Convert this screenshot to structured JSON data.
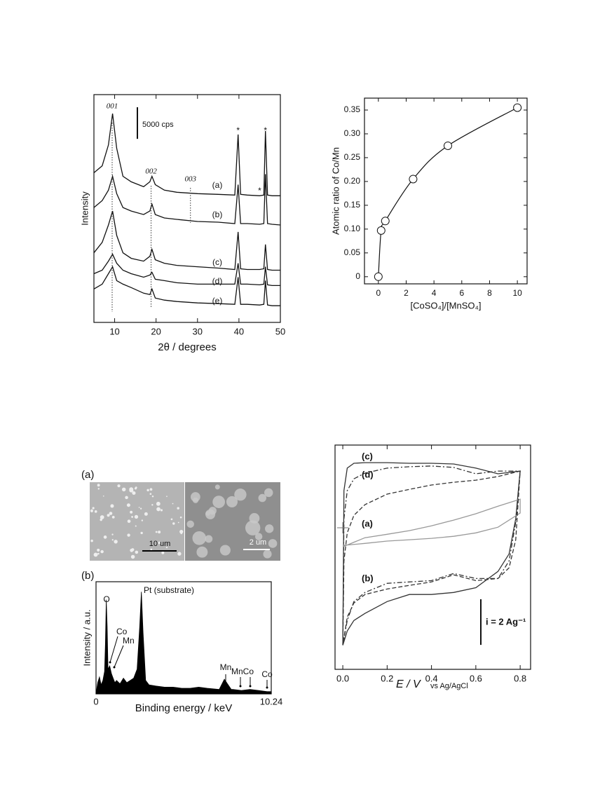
{
  "chart_data": [
    {
      "type": "line",
      "x_label": "2θ / degrees",
      "y_label": "Intensity",
      "xlim": [
        5,
        50
      ],
      "xticks": [
        10,
        20,
        30,
        40,
        50
      ],
      "ylim": [
        0,
        36000
      ],
      "x": [
        5,
        7,
        8.5,
        9.5,
        10.5,
        12,
        14,
        17,
        18.5,
        19,
        19.8,
        22,
        25,
        30,
        35,
        39,
        39.8,
        40.4,
        42,
        45,
        46,
        46.4,
        46.9,
        48,
        50
      ],
      "series": [
        {
          "name": "(a)",
          "color": "#111111",
          "values": [
            23650,
            24750,
            28050,
            33000,
            27500,
            23100,
            22220,
            21450,
            22220,
            23100,
            21780,
            20900,
            20570,
            20350,
            20240,
            20130,
            29700,
            20240,
            20130,
            20020,
            20130,
            30250,
            20130,
            20020,
            20020
          ]
        },
        {
          "name": "(b)",
          "color": "#111111",
          "values": [
            18150,
            19250,
            20900,
            23100,
            20350,
            18150,
            17600,
            17050,
            17600,
            18700,
            17050,
            16500,
            16280,
            15950,
            15840,
            15620,
            21780,
            15620,
            15620,
            15510,
            15620,
            23430,
            15620,
            15510,
            15400
          ]
        },
        {
          "name": "(c)",
          "color": "#111111",
          "values": [
            11000,
            12650,
            15400,
            17600,
            13750,
            11000,
            10120,
            9680,
            10450,
            11550,
            9900,
            9350,
            9020,
            8800,
            8580,
            8360,
            14300,
            8470,
            8360,
            8360,
            8470,
            12320,
            8360,
            8250,
            8250
          ]
        },
        {
          "name": "(d)",
          "color": "#111111",
          "values": [
            7700,
            8250,
            9680,
            10780,
            9350,
            8250,
            7700,
            7150,
            7480,
            7920,
            6820,
            6600,
            6270,
            6050,
            6050,
            6050,
            9350,
            6050,
            6050,
            5940,
            6050,
            8800,
            5940,
            5830,
            5830
          ]
        },
        {
          "name": "(e)",
          "color": "#111111",
          "values": [
            5280,
            6050,
            7700,
            8800,
            6600,
            6050,
            5500,
            4620,
            4400,
            5280,
            3850,
            3520,
            3300,
            3080,
            2970,
            2860,
            7150,
            2860,
            2860,
            2750,
            2860,
            6600,
            2750,
            2640,
            2640
          ]
        }
      ],
      "reflections": [
        {
          "value": 9.4,
          "label": "001"
        },
        {
          "value": 18.8,
          "label": "002"
        },
        {
          "value": 28.3,
          "label": "003"
        }
      ],
      "impurity_marks": [
        {
          "value": 39.8,
          "label": "*"
        },
        {
          "value": 46.4,
          "label": "*"
        },
        {
          "value": 45,
          "label": "*"
        }
      ],
      "scale_bar": {
        "value": 5000,
        "label": "5000 cps"
      }
    },
    {
      "type": "scatter",
      "line": true,
      "marker": "open-circle",
      "x_label": "[CoSO₄]/[MnSO₄]",
      "y_label": "Atomic ratio of Co/Mn",
      "xlim": [
        -1,
        10.7
      ],
      "xticks": [
        0,
        2,
        4,
        6,
        8,
        10
      ],
      "ylim": [
        -0.015,
        0.375
      ],
      "yticks": [
        0,
        0.05,
        {
          "value": 0.1,
          "label": "0.10"
        },
        0.15,
        {
          "value": 0.2,
          "label": "0.20"
        },
        0.25,
        {
          "value": 0.3,
          "label": "0.30"
        },
        0.35
      ],
      "x": [
        0,
        0.2,
        0.5,
        2.5,
        5,
        10
      ],
      "values": [
        0,
        0.097,
        0.117,
        0.205,
        0.275,
        0.355
      ],
      "color": "#111111"
    },
    {
      "type": "area",
      "panel_labels": [
        "(a)",
        "(b)"
      ],
      "scale_bars": [
        "10 um",
        "2 um"
      ],
      "x_label": "Binding energy / keV",
      "y_label": "Intensity / a.u.",
      "xlim": [
        0,
        10.24
      ],
      "xticks": [
        0,
        10.24
      ],
      "ylim": [
        0,
        100
      ],
      "x": [
        0,
        0.1,
        0.2,
        0.3,
        0.4,
        0.5,
        0.55,
        0.6,
        0.65,
        0.7,
        0.8,
        0.9,
        1.0,
        1.1,
        1.2,
        1.4,
        1.6,
        1.8,
        2.0,
        2.2,
        2.4,
        2.55,
        2.65,
        2.75,
        2.9,
        3.1,
        3.5,
        4,
        4.5,
        5,
        5.5,
        6,
        6.5,
        7.2,
        7.5,
        7.9,
        8,
        8.5,
        9,
        9.5,
        10,
        10.24
      ],
      "values": [
        0,
        10,
        15,
        8,
        12,
        20,
        45,
        84,
        60,
        22,
        25,
        18,
        14,
        10,
        12,
        9,
        14,
        10,
        12,
        14,
        22,
        60,
        91,
        55,
        12,
        8,
        7,
        6,
        6,
        5,
        5,
        6,
        5,
        4,
        13,
        4,
        4,
        3,
        4,
        3,
        2,
        2
      ],
      "color": "#000000",
      "peak_labels": [
        "O",
        "Co",
        "Mn",
        "Pt (substrate)",
        "Mn",
        "MnCo",
        "Co"
      ]
    },
    {
      "type": "line",
      "x_label": "E / V",
      "x_label_sub": "vs Ag/AgCl",
      "xlim": [
        -0.035,
        0.847
      ],
      "xticks": [
        {
          "value": 0,
          "label": "0.0"
        },
        0.2,
        0.4,
        0.6,
        0.8
      ],
      "ylim": [
        -6.2,
        3.63
      ],
      "series": [
        {
          "name": "(c)",
          "color": "#333333",
          "dash": "solid",
          "x": [
            0,
            0.005,
            0.02,
            0.05,
            0.1,
            0.2,
            0.3,
            0.4,
            0.5,
            0.6,
            0.7,
            0.8,
            0.78,
            0.75,
            0.7,
            0.6,
            0.5,
            0.4,
            0.3,
            0.2,
            0.1,
            0.05,
            0.02,
            0
          ],
          "values": [
            -5.14,
            1.63,
            2.62,
            2.83,
            2.86,
            2.86,
            2.83,
            2.83,
            2.8,
            2.62,
            2.37,
            2.49,
            0.4,
            -1.14,
            -1.91,
            -2.62,
            -2.83,
            -2.92,
            -2.92,
            -3.23,
            -3.75,
            -4.06,
            -4.52,
            -5.14
          ]
        },
        {
          "name": "(d)",
          "color": "#333333",
          "dash": "dashdot",
          "x": [
            0,
            0.005,
            0.02,
            0.05,
            0.1,
            0.2,
            0.3,
            0.4,
            0.5,
            0.6,
            0.7,
            0.8,
            0.78,
            0.75,
            0.7,
            0.6,
            0.5,
            0.4,
            0.3,
            0.2,
            0.1,
            0.05,
            0.02,
            0
          ],
          "values": [
            -5.14,
            0.4,
            1.63,
            2.15,
            2.4,
            2.62,
            2.68,
            2.71,
            2.65,
            2.37,
            2.49,
            2.49,
            0.25,
            -1.45,
            -2.22,
            -2.22,
            -2,
            -2.31,
            -2.37,
            -2.43,
            -2.83,
            -3.23,
            -4.06,
            -5.14
          ]
        },
        {
          "name": "(a)",
          "color": "#999999",
          "dash": "solid",
          "x": [
            0,
            0.1,
            0.2,
            0.3,
            0.4,
            0.5,
            0.6,
            0.7,
            0.8,
            0.8,
            0.7,
            0.6,
            0.5,
            0.4,
            0.3,
            0.2,
            0.1,
            0
          ],
          "values": [
            -0.83,
            -0.43,
            -0.28,
            -0.12,
            0.09,
            0.34,
            0.62,
            0.95,
            1.26,
            0.65,
            0.03,
            -0.22,
            -0.37,
            -0.46,
            -0.52,
            -0.58,
            -0.68,
            -0.77
          ]
        },
        {
          "name": "(b)",
          "color": "#333333",
          "dash": "dashed",
          "x": [
            0,
            0.005,
            0.02,
            0.05,
            0.1,
            0.2,
            0.3,
            0.4,
            0.5,
            0.6,
            0.7,
            0.8,
            0.78,
            0.75,
            0.7,
            0.6,
            0.5,
            0.4,
            0.3,
            0.2,
            0.1,
            0.05,
            0.02,
            0
          ],
          "values": [
            -5.14,
            -1.45,
            -0.22,
            0.55,
            1.02,
            1.48,
            1.69,
            1.88,
            2,
            2.09,
            2.25,
            2.49,
            -0.52,
            -1.75,
            -2.22,
            -2.31,
            -2.06,
            -2.37,
            -2.52,
            -2.68,
            -2.92,
            -3.29,
            -3.91,
            -5.14
          ]
        }
      ],
      "scale_bar": {
        "value": 2,
        "label": "i = 2 Ag⁻¹"
      }
    }
  ]
}
